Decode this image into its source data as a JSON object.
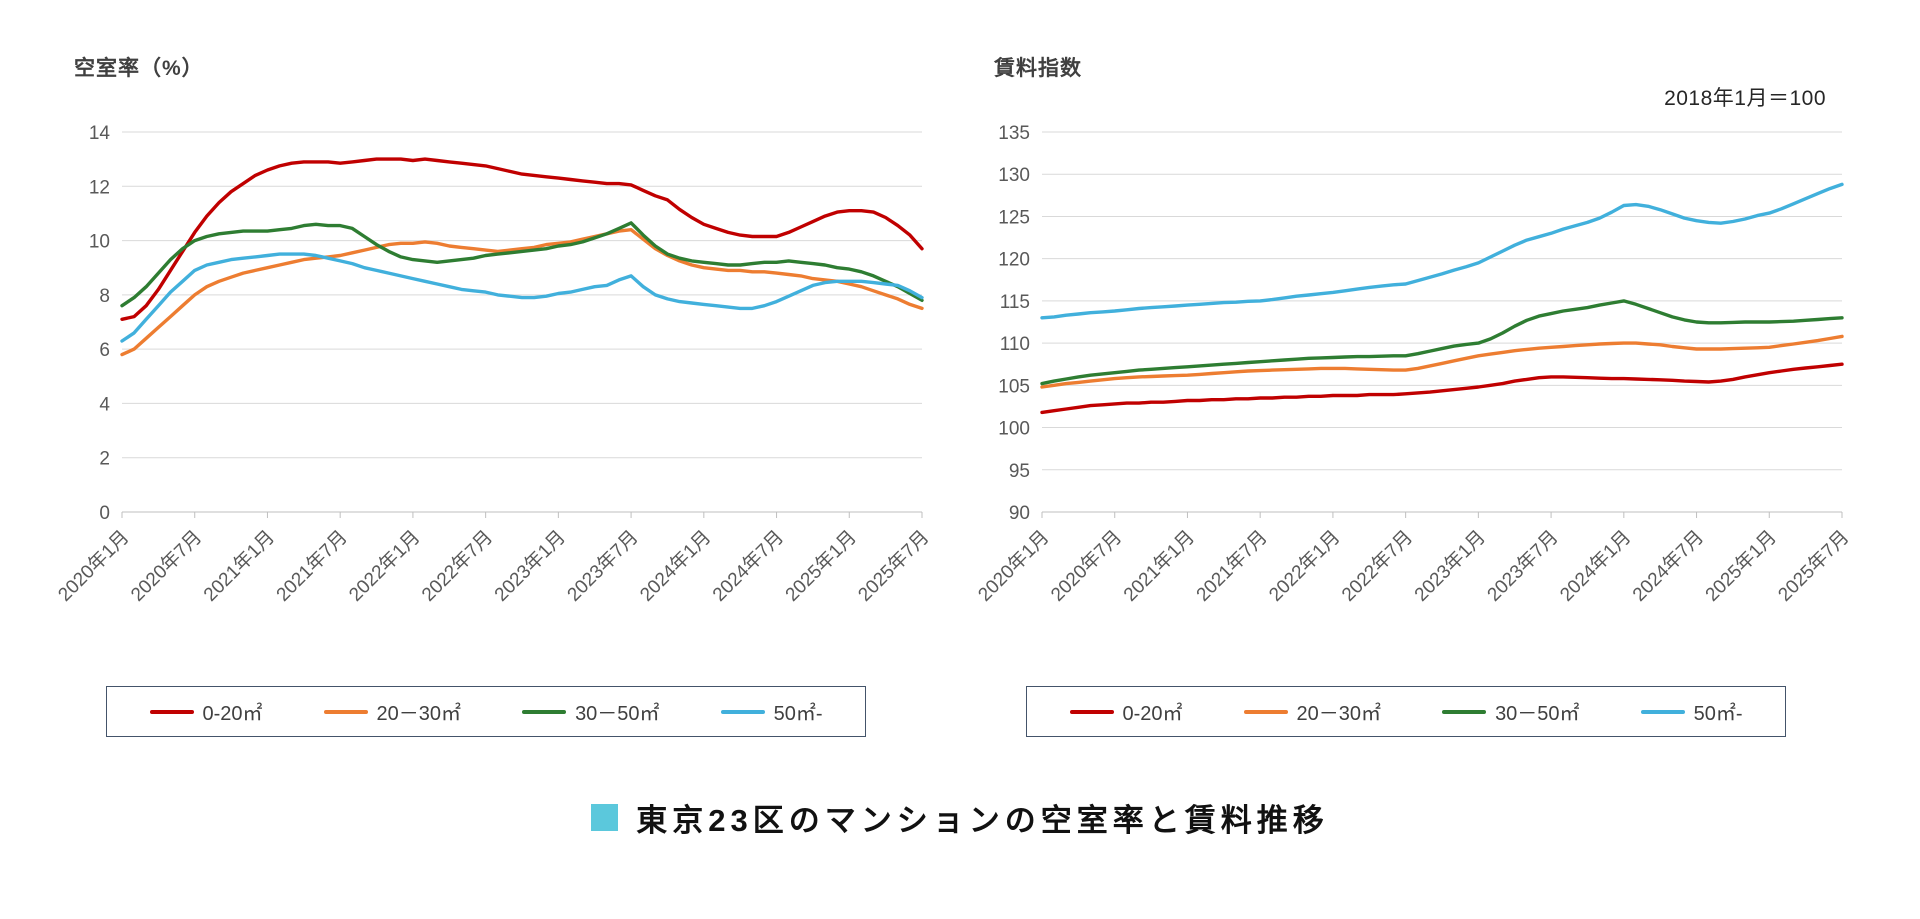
{
  "style": {
    "background": "#ffffff",
    "grid_color": "#d9d9d9",
    "axis_line_color": "#bfbfbf",
    "axis_text_color": "#595959",
    "title_color": "#404040",
    "legend_border_color": "#44546A"
  },
  "footer": {
    "title": "東京23区のマンションの空室率と賃料推移",
    "marker_color": "#5BC8DC"
  },
  "chart_data": [
    {
      "type": "line",
      "title": "空室率（%）",
      "annotation": "",
      "ylim": [
        0,
        14
      ],
      "ytick_step": 2,
      "grid": true,
      "legend_position": "bottom",
      "x_interval": "monthly",
      "tick_every": 6,
      "tick_labels": [
        "2020年1月",
        "2020年7月",
        "2021年1月",
        "2021年7月",
        "2022年1月",
        "2022年7月",
        "2023年1月",
        "2023年7月",
        "2024年1月",
        "2024年7月",
        "2025年1月",
        "2025年7月"
      ],
      "series": [
        {
          "name": "0-20㎡",
          "color": "#C00000",
          "values": [
            7.1,
            7.2,
            7.6,
            8.2,
            8.9,
            9.6,
            10.3,
            10.9,
            11.4,
            11.8,
            12.1,
            12.4,
            12.6,
            12.75,
            12.85,
            12.9,
            12.9,
            12.9,
            12.85,
            12.9,
            12.95,
            13.0,
            13.0,
            13.0,
            12.95,
            13.0,
            12.95,
            12.9,
            12.85,
            12.8,
            12.75,
            12.65,
            12.55,
            12.45,
            12.4,
            12.35,
            12.3,
            12.25,
            12.2,
            12.15,
            12.1,
            12.1,
            12.05,
            11.85,
            11.65,
            11.5,
            11.15,
            10.85,
            10.6,
            10.45,
            10.3,
            10.2,
            10.15,
            10.15,
            10.15,
            10.3,
            10.5,
            10.7,
            10.9,
            11.05,
            11.1,
            11.1,
            11.05,
            10.85,
            10.55,
            10.2,
            9.7
          ]
        },
        {
          "name": "20－30㎡",
          "color": "#ED7D31",
          "values": [
            5.8,
            6.0,
            6.4,
            6.8,
            7.2,
            7.6,
            8.0,
            8.3,
            8.5,
            8.65,
            8.8,
            8.9,
            9.0,
            9.1,
            9.2,
            9.3,
            9.35,
            9.4,
            9.45,
            9.55,
            9.65,
            9.75,
            9.85,
            9.9,
            9.9,
            9.95,
            9.9,
            9.8,
            9.75,
            9.7,
            9.65,
            9.6,
            9.65,
            9.7,
            9.75,
            9.85,
            9.9,
            9.95,
            10.05,
            10.15,
            10.25,
            10.35,
            10.4,
            10.05,
            9.7,
            9.45,
            9.25,
            9.1,
            9.0,
            8.95,
            8.9,
            8.9,
            8.85,
            8.85,
            8.8,
            8.75,
            8.7,
            8.6,
            8.55,
            8.5,
            8.4,
            8.3,
            8.15,
            8.0,
            7.85,
            7.65,
            7.5
          ]
        },
        {
          "name": "30－50㎡",
          "color": "#2E7D32",
          "values": [
            7.6,
            7.9,
            8.3,
            8.8,
            9.3,
            9.7,
            10.0,
            10.15,
            10.25,
            10.3,
            10.35,
            10.35,
            10.35,
            10.4,
            10.45,
            10.55,
            10.6,
            10.55,
            10.55,
            10.45,
            10.15,
            9.85,
            9.6,
            9.4,
            9.3,
            9.25,
            9.2,
            9.25,
            9.3,
            9.35,
            9.45,
            9.5,
            9.55,
            9.6,
            9.65,
            9.7,
            9.8,
            9.85,
            9.95,
            10.1,
            10.25,
            10.45,
            10.65,
            10.2,
            9.8,
            9.5,
            9.35,
            9.25,
            9.2,
            9.15,
            9.1,
            9.1,
            9.15,
            9.2,
            9.2,
            9.25,
            9.2,
            9.15,
            9.1,
            9.0,
            8.95,
            8.85,
            8.7,
            8.5,
            8.3,
            8.05,
            7.8
          ]
        },
        {
          "name": "50㎡-",
          "color": "#41B0DC",
          "values": [
            6.3,
            6.6,
            7.1,
            7.6,
            8.1,
            8.5,
            8.9,
            9.1,
            9.2,
            9.3,
            9.35,
            9.4,
            9.45,
            9.5,
            9.5,
            9.5,
            9.45,
            9.35,
            9.25,
            9.15,
            9.0,
            8.9,
            8.8,
            8.7,
            8.6,
            8.5,
            8.4,
            8.3,
            8.2,
            8.15,
            8.1,
            8.0,
            7.95,
            7.9,
            7.9,
            7.95,
            8.05,
            8.1,
            8.2,
            8.3,
            8.35,
            8.55,
            8.7,
            8.3,
            8.0,
            7.85,
            7.75,
            7.7,
            7.65,
            7.6,
            7.55,
            7.5,
            7.5,
            7.6,
            7.75,
            7.95,
            8.15,
            8.35,
            8.45,
            8.5,
            8.5,
            8.5,
            8.45,
            8.4,
            8.35,
            8.15,
            7.9
          ]
        }
      ]
    },
    {
      "type": "line",
      "title": "賃料指数",
      "annotation": "2018年1月＝100",
      "ylim": [
        90,
        135
      ],
      "ytick_step": 5,
      "grid": true,
      "legend_position": "bottom",
      "x_interval": "monthly",
      "tick_every": 6,
      "tick_labels": [
        "2020年1月",
        "2020年7月",
        "2021年1月",
        "2021年7月",
        "2022年1月",
        "2022年7月",
        "2023年1月",
        "2023年7月",
        "2024年1月",
        "2024年7月",
        "2025年1月",
        "2025年7月"
      ],
      "series": [
        {
          "name": "0-20㎡",
          "color": "#C00000",
          "values": [
            101.8,
            102.0,
            102.2,
            102.4,
            102.6,
            102.7,
            102.8,
            102.9,
            102.9,
            103.0,
            103.0,
            103.1,
            103.2,
            103.2,
            103.3,
            103.3,
            103.4,
            103.4,
            103.5,
            103.5,
            103.6,
            103.6,
            103.7,
            103.7,
            103.8,
            103.8,
            103.8,
            103.9,
            103.9,
            103.9,
            104.0,
            104.1,
            104.2,
            104.35,
            104.5,
            104.65,
            104.8,
            105.0,
            105.2,
            105.5,
            105.7,
            105.9,
            106.0,
            106.0,
            105.95,
            105.9,
            105.85,
            105.8,
            105.8,
            105.75,
            105.7,
            105.65,
            105.6,
            105.5,
            105.45,
            105.4,
            105.5,
            105.7,
            106.0,
            106.25,
            106.5,
            106.7,
            106.9,
            107.05,
            107.2,
            107.35,
            107.5
          ]
        },
        {
          "name": "20－30㎡",
          "color": "#ED7D31",
          "values": [
            104.8,
            105.0,
            105.2,
            105.35,
            105.5,
            105.65,
            105.8,
            105.9,
            106.0,
            106.05,
            106.1,
            106.15,
            106.2,
            106.3,
            106.4,
            106.5,
            106.6,
            106.7,
            106.75,
            106.8,
            106.85,
            106.9,
            106.95,
            107.0,
            107.0,
            107.0,
            106.95,
            106.9,
            106.85,
            106.8,
            106.8,
            107.0,
            107.3,
            107.6,
            107.9,
            108.2,
            108.5,
            108.7,
            108.9,
            109.1,
            109.25,
            109.4,
            109.5,
            109.6,
            109.7,
            109.8,
            109.9,
            109.95,
            110.0,
            110.0,
            109.9,
            109.8,
            109.6,
            109.45,
            109.3,
            109.3,
            109.3,
            109.35,
            109.4,
            109.45,
            109.5,
            109.7,
            109.9,
            110.1,
            110.3,
            110.55,
            110.8
          ]
        },
        {
          "name": "30－50㎡",
          "color": "#2E7D32",
          "values": [
            105.2,
            105.5,
            105.75,
            106.0,
            106.2,
            106.35,
            106.5,
            106.65,
            106.8,
            106.9,
            107.0,
            107.1,
            107.2,
            107.3,
            107.4,
            107.5,
            107.6,
            107.7,
            107.8,
            107.9,
            108.0,
            108.1,
            108.2,
            108.25,
            108.3,
            108.35,
            108.4,
            108.4,
            108.45,
            108.5,
            108.5,
            108.75,
            109.05,
            109.35,
            109.65,
            109.85,
            110.0,
            110.5,
            111.2,
            112.0,
            112.7,
            113.2,
            113.5,
            113.8,
            114.0,
            114.2,
            114.5,
            114.75,
            115.0,
            114.6,
            114.1,
            113.6,
            113.1,
            112.75,
            112.5,
            112.4,
            112.4,
            112.45,
            112.5,
            112.5,
            112.5,
            112.55,
            112.6,
            112.7,
            112.8,
            112.9,
            113.0
          ]
        },
        {
          "name": "50㎡-",
          "color": "#41B0DC",
          "values": [
            113.0,
            113.1,
            113.3,
            113.45,
            113.6,
            113.7,
            113.8,
            113.95,
            114.1,
            114.2,
            114.3,
            114.4,
            114.5,
            114.6,
            114.7,
            114.8,
            114.85,
            114.95,
            115.0,
            115.15,
            115.35,
            115.55,
            115.7,
            115.85,
            116.0,
            116.2,
            116.4,
            116.6,
            116.75,
            116.9,
            117.0,
            117.4,
            117.8,
            118.2,
            118.65,
            119.05,
            119.5,
            120.2,
            120.9,
            121.6,
            122.2,
            122.6,
            123.0,
            123.5,
            123.9,
            124.3,
            124.8,
            125.5,
            126.3,
            126.4,
            126.2,
            125.8,
            125.3,
            124.8,
            124.5,
            124.3,
            124.2,
            124.4,
            124.7,
            125.1,
            125.4,
            125.9,
            126.5,
            127.1,
            127.7,
            128.3,
            128.8
          ]
        }
      ]
    }
  ]
}
